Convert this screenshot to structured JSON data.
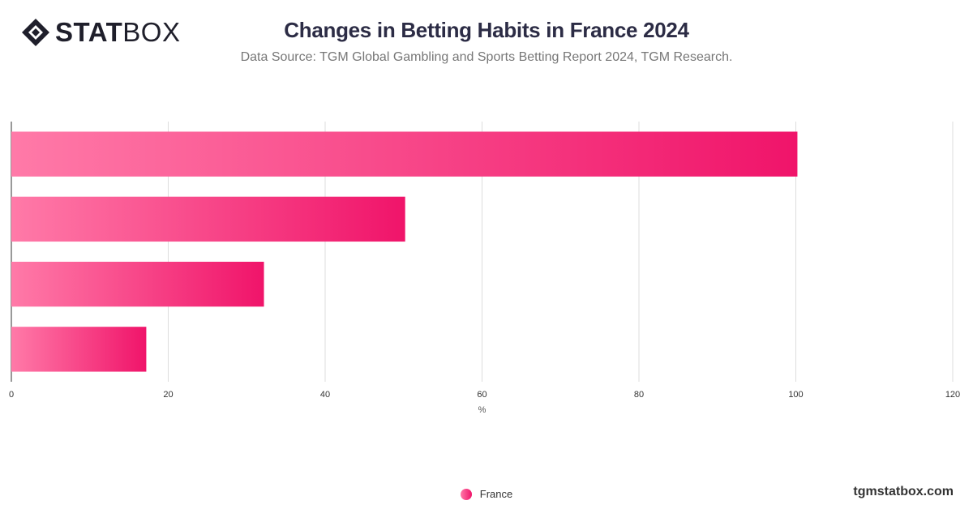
{
  "header": {
    "logo_bold": "STAT",
    "logo_light": "BOX",
    "title": "Changes in Betting Habits in France 2024",
    "subtitle": "Data Source: TGM Global Gambling and Sports Betting Report 2024, TGM Research."
  },
  "footer": {
    "site": "tgmstatbox.com"
  },
  "colors": {
    "bar_start": "#ff7aa8",
    "bar_end": "#f0146a",
    "grid": "#dddddd",
    "axis": "#333333"
  },
  "chart_data": {
    "type": "bar",
    "orientation": "horizontal",
    "categories": [
      "",
      "",
      "",
      ""
    ],
    "series": [
      {
        "name": "France",
        "values": [
          100.2,
          50.2,
          32.2,
          17.2
        ]
      }
    ],
    "xlabel": "%",
    "xlim": [
      0,
      120
    ],
    "xticks": [
      0,
      20,
      40,
      60,
      80,
      100,
      120
    ],
    "grid": true,
    "legend": "bottom-center"
  }
}
